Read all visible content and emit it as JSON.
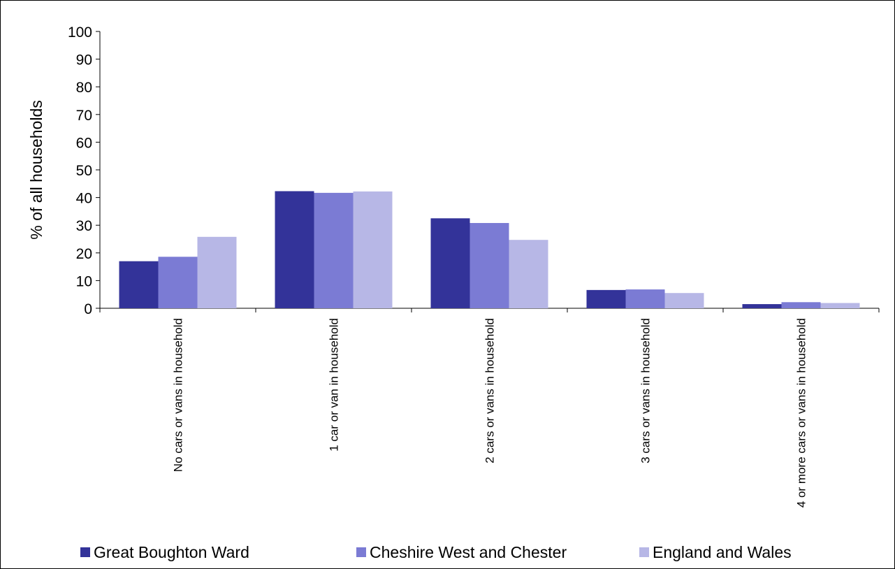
{
  "chart_data": {
    "type": "bar",
    "title": "",
    "xlabel": "",
    "ylabel": "% of all households",
    "ylim": [
      0,
      100
    ],
    "yticks": [
      0,
      10,
      20,
      30,
      40,
      50,
      60,
      70,
      80,
      90,
      100
    ],
    "grid": false,
    "legend_position": "bottom",
    "categories": [
      "No cars or vans in household",
      "1 car or van in household",
      "2 cars or vans in household",
      "3 cars or vans in household",
      "4 or more cars or vans in household"
    ],
    "series": [
      {
        "name": "Great Boughton Ward",
        "color": "#333399",
        "values": [
          17.0,
          42.3,
          32.5,
          6.6,
          1.5
        ]
      },
      {
        "name": "Cheshire West and Chester",
        "color": "#7b7bd4",
        "values": [
          18.6,
          41.7,
          30.8,
          6.8,
          2.2
        ]
      },
      {
        "name": "England and Wales",
        "color": "#b7b7e6",
        "values": [
          25.8,
          42.2,
          24.7,
          5.5,
          1.9
        ]
      }
    ]
  }
}
